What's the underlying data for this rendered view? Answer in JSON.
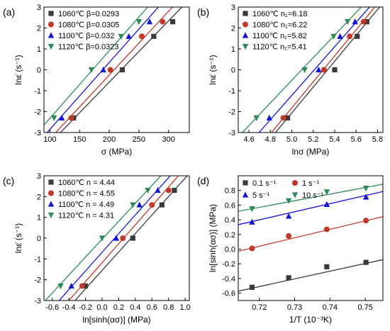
{
  "chart_data": [
    {
      "type": "scatter",
      "panel_label": "(a)",
      "xlabel": "σ (MPa)",
      "ylabel": "lnε̇ (s⁻¹)",
      "xlim": [
        90,
        335
      ],
      "ylim": [
        -3,
        3
      ],
      "xticks": [
        100,
        150,
        200,
        250,
        300
      ],
      "yticks": [
        -3,
        -2,
        -1,
        0,
        1,
        2,
        3
      ],
      "legend_position": "top-left",
      "legend": [
        "1060℃ β=0.0293",
        "1080℃ β=0.0305",
        "1100℃ β=0.032",
        "1120℃ β=0.0323"
      ],
      "series": [
        {
          "name": "1060℃",
          "color": "#3a3a3a",
          "marker": "square",
          "x": [
            140,
            222,
            275,
            307
          ],
          "y": [
            -2.3,
            0.0,
            1.6,
            2.3
          ],
          "fit": {
            "slope": 0.0293,
            "intercept": -6.45
          }
        },
        {
          "name": "1080℃",
          "color": "#c0392b",
          "marker": "circle",
          "x": [
            136,
            202,
            255,
            290
          ],
          "y": [
            -2.3,
            0.0,
            1.6,
            2.3
          ],
          "fit": {
            "slope": 0.0305,
            "intercept": -6.35
          }
        },
        {
          "name": "1100℃",
          "color": "#1515d6",
          "marker": "triangle",
          "x": [
            120,
            190,
            233,
            268
          ],
          "y": [
            -2.3,
            0.0,
            1.6,
            2.3
          ],
          "fit": {
            "slope": 0.032,
            "intercept": -6.05
          }
        },
        {
          "name": "1120℃",
          "color": "#2e8b57",
          "marker": "triangle-down",
          "x": [
            107,
            170,
            220,
            250
          ],
          "y": [
            -2.3,
            0.0,
            1.6,
            2.3
          ],
          "fit": {
            "slope": 0.0323,
            "intercept": -5.55
          }
        }
      ]
    },
    {
      "type": "scatter",
      "panel_label": "(b)",
      "xlabel": "lnσ (MPa)",
      "ylabel": "lnε̇ (s⁻¹)",
      "xlim": [
        4.5,
        5.85
      ],
      "ylim": [
        -3,
        3
      ],
      "xticks": [
        4.6,
        4.8,
        5.0,
        5.2,
        5.4,
        5.6,
        5.8
      ],
      "yticks": [
        -3,
        -2,
        -1,
        0,
        1,
        2,
        3
      ],
      "legend_position": "top-left",
      "legend": [
        "1060℃ n₁=6.18",
        "1080℃ n₁=6.22",
        "1100℃ n₁=5.82",
        "1120℃ n₁=5.41"
      ],
      "series": [
        {
          "name": "1060℃",
          "color": "#3a3a3a",
          "marker": "square",
          "x": [
            4.96,
            5.4,
            5.61,
            5.7
          ],
          "y": [
            -2.3,
            0.0,
            1.6,
            2.3
          ],
          "fit": {
            "slope": 6.18,
            "intercept": -32.96
          }
        },
        {
          "name": "1080℃",
          "color": "#c0392b",
          "marker": "circle",
          "x": [
            4.92,
            5.3,
            5.54,
            5.67
          ],
          "y": [
            -2.3,
            0.0,
            1.6,
            2.3
          ],
          "fit": {
            "slope": 6.22,
            "intercept": -32.92
          }
        },
        {
          "name": "1100℃",
          "color": "#1515d6",
          "marker": "triangle",
          "x": [
            4.79,
            5.25,
            5.45,
            5.59
          ],
          "y": [
            -2.3,
            0.0,
            1.6,
            2.3
          ],
          "fit": {
            "slope": 5.82,
            "intercept": -30.32
          }
        },
        {
          "name": "1120℃",
          "color": "#2e8b57",
          "marker": "triangle-down",
          "x": [
            4.67,
            5.12,
            5.39,
            5.52
          ],
          "y": [
            -2.3,
            0.0,
            1.6,
            2.3
          ],
          "fit": {
            "slope": 5.41,
            "intercept": -27.55
          }
        }
      ]
    },
    {
      "type": "scatter",
      "panel_label": "(c)",
      "xlabel": "ln[sinh(ασ)] (MPa)",
      "ylabel": "lnε̇ (s⁻¹)",
      "xlim": [
        -0.7,
        1.05
      ],
      "ylim": [
        -3,
        3
      ],
      "xticks": [
        -0.6,
        -0.4,
        -0.2,
        0.0,
        0.2,
        0.4,
        0.6,
        0.8,
        1.0
      ],
      "yticks": [
        -3,
        -2,
        -1,
        0,
        1,
        2,
        3
      ],
      "legend_position": "top-left",
      "legend": [
        "1060℃ n = 4.44",
        "1080℃ n = 4.55",
        "1100℃ n = 4.49",
        "1120℃ n = 4.31"
      ],
      "series": [
        {
          "name": "1060℃",
          "color": "#3a3a3a",
          "marker": "square",
          "x": [
            -0.2,
            0.37,
            0.72,
            0.87
          ],
          "y": [
            -2.3,
            0.0,
            1.6,
            2.3
          ],
          "fit": {
            "slope": 4.44,
            "intercept": -1.55
          }
        },
        {
          "name": "1080℃",
          "color": "#c0392b",
          "marker": "circle",
          "x": [
            -0.24,
            0.25,
            0.6,
            0.8
          ],
          "y": [
            -2.3,
            0.0,
            1.6,
            2.3
          ],
          "fit": {
            "slope": 4.55,
            "intercept": -1.18
          }
        },
        {
          "name": "1100℃",
          "color": "#1515d6",
          "marker": "triangle",
          "x": [
            -0.37,
            0.17,
            0.45,
            0.67
          ],
          "y": [
            -2.3,
            0.0,
            1.6,
            2.3
          ],
          "fit": {
            "slope": 4.49,
            "intercept": -0.68
          }
        },
        {
          "name": "1120℃",
          "color": "#2e8b57",
          "marker": "triangle-down",
          "x": [
            -0.5,
            0.0,
            0.37,
            0.55
          ],
          "y": [
            -2.3,
            0.0,
            1.6,
            2.3
          ],
          "fit": {
            "slope": 4.31,
            "intercept": -0.05
          }
        }
      ]
    },
    {
      "type": "scatter",
      "panel_label": "(d)",
      "xlabel": "1/T (10⁻³K)",
      "ylabel": "ln[sinh(ασ)] (MPa)",
      "xlim": [
        0.714,
        0.755
      ],
      "ylim": [
        -0.7,
        1.0
      ],
      "xticks": [
        0.72,
        0.73,
        0.74,
        0.75
      ],
      "yticks": [
        -0.6,
        -0.4,
        -0.2,
        0.0,
        0.2,
        0.4,
        0.6,
        0.8
      ],
      "legend_position": "top",
      "legend": [
        "0.1 s⁻¹",
        "1 s⁻¹",
        "5 s⁻¹",
        "10 s⁻¹"
      ],
      "series": [
        {
          "name": "0.1 s⁻¹",
          "color": "#3a3a3a",
          "marker": "square",
          "x": [
            0.7179,
            0.7283,
            0.7391,
            0.7502
          ],
          "y": [
            -0.52,
            -0.39,
            -0.24,
            -0.18
          ],
          "fit": {
            "slope": 10.5,
            "intercept": -8.07
          }
        },
        {
          "name": "1 s⁻¹",
          "color": "#c0392b",
          "marker": "circle",
          "x": [
            0.7179,
            0.7283,
            0.7391,
            0.7502
          ],
          "y": [
            0.01,
            0.18,
            0.27,
            0.39
          ],
          "fit": {
            "slope": 11.5,
            "intercept": -8.24
          }
        },
        {
          "name": "5 s⁻¹",
          "color": "#1515d6",
          "marker": "triangle",
          "x": [
            0.7179,
            0.7283,
            0.7391,
            0.7502
          ],
          "y": [
            0.37,
            0.45,
            0.61,
            0.71
          ],
          "fit": {
            "slope": 11.0,
            "intercept": -7.52
          }
        },
        {
          "name": "10 s⁻¹",
          "color": "#2e8b57",
          "marker": "triangle-down",
          "x": [
            0.7179,
            0.7283,
            0.7391,
            0.7502
          ],
          "y": [
            0.55,
            0.66,
            0.78,
            0.83
          ],
          "fit": {
            "slope": 9.0,
            "intercept": -5.91
          }
        }
      ]
    }
  ]
}
